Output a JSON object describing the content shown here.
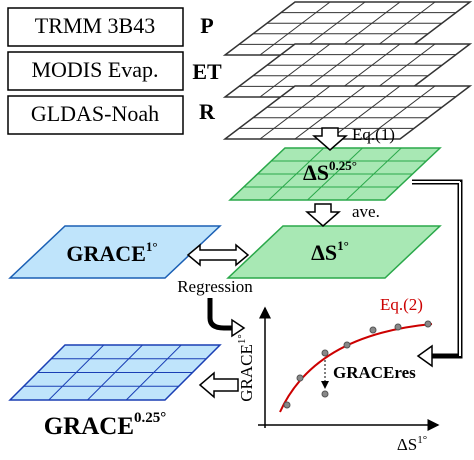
{
  "inputs": [
    {
      "label": "TRMM 3B43",
      "variable": "P"
    },
    {
      "label": "MODIS Evap.",
      "variable": "ET"
    },
    {
      "label": "GLDAS-Noah",
      "variable": "R"
    }
  ],
  "steps": {
    "eq1": "Eq.(1)",
    "ave": "ave.",
    "regression": "Regression"
  },
  "grids": {
    "ds_fine": {
      "base": "ΔS",
      "sup": "0.25°"
    },
    "ds_coarse": {
      "base": "ΔS",
      "sup": "1°"
    },
    "grace_coarse": {
      "base": "GRACE",
      "sup": "1°"
    },
    "grace_fine": {
      "base": "GRACE",
      "sup": "0.25°"
    }
  },
  "plot": {
    "curve_label": "Eq.(2)",
    "y_axis": {
      "base": "GRACE",
      "sup": "1°"
    },
    "x_axis": {
      "base": "ΔS",
      "sup": "1°"
    },
    "residual": "GRACEres"
  }
}
